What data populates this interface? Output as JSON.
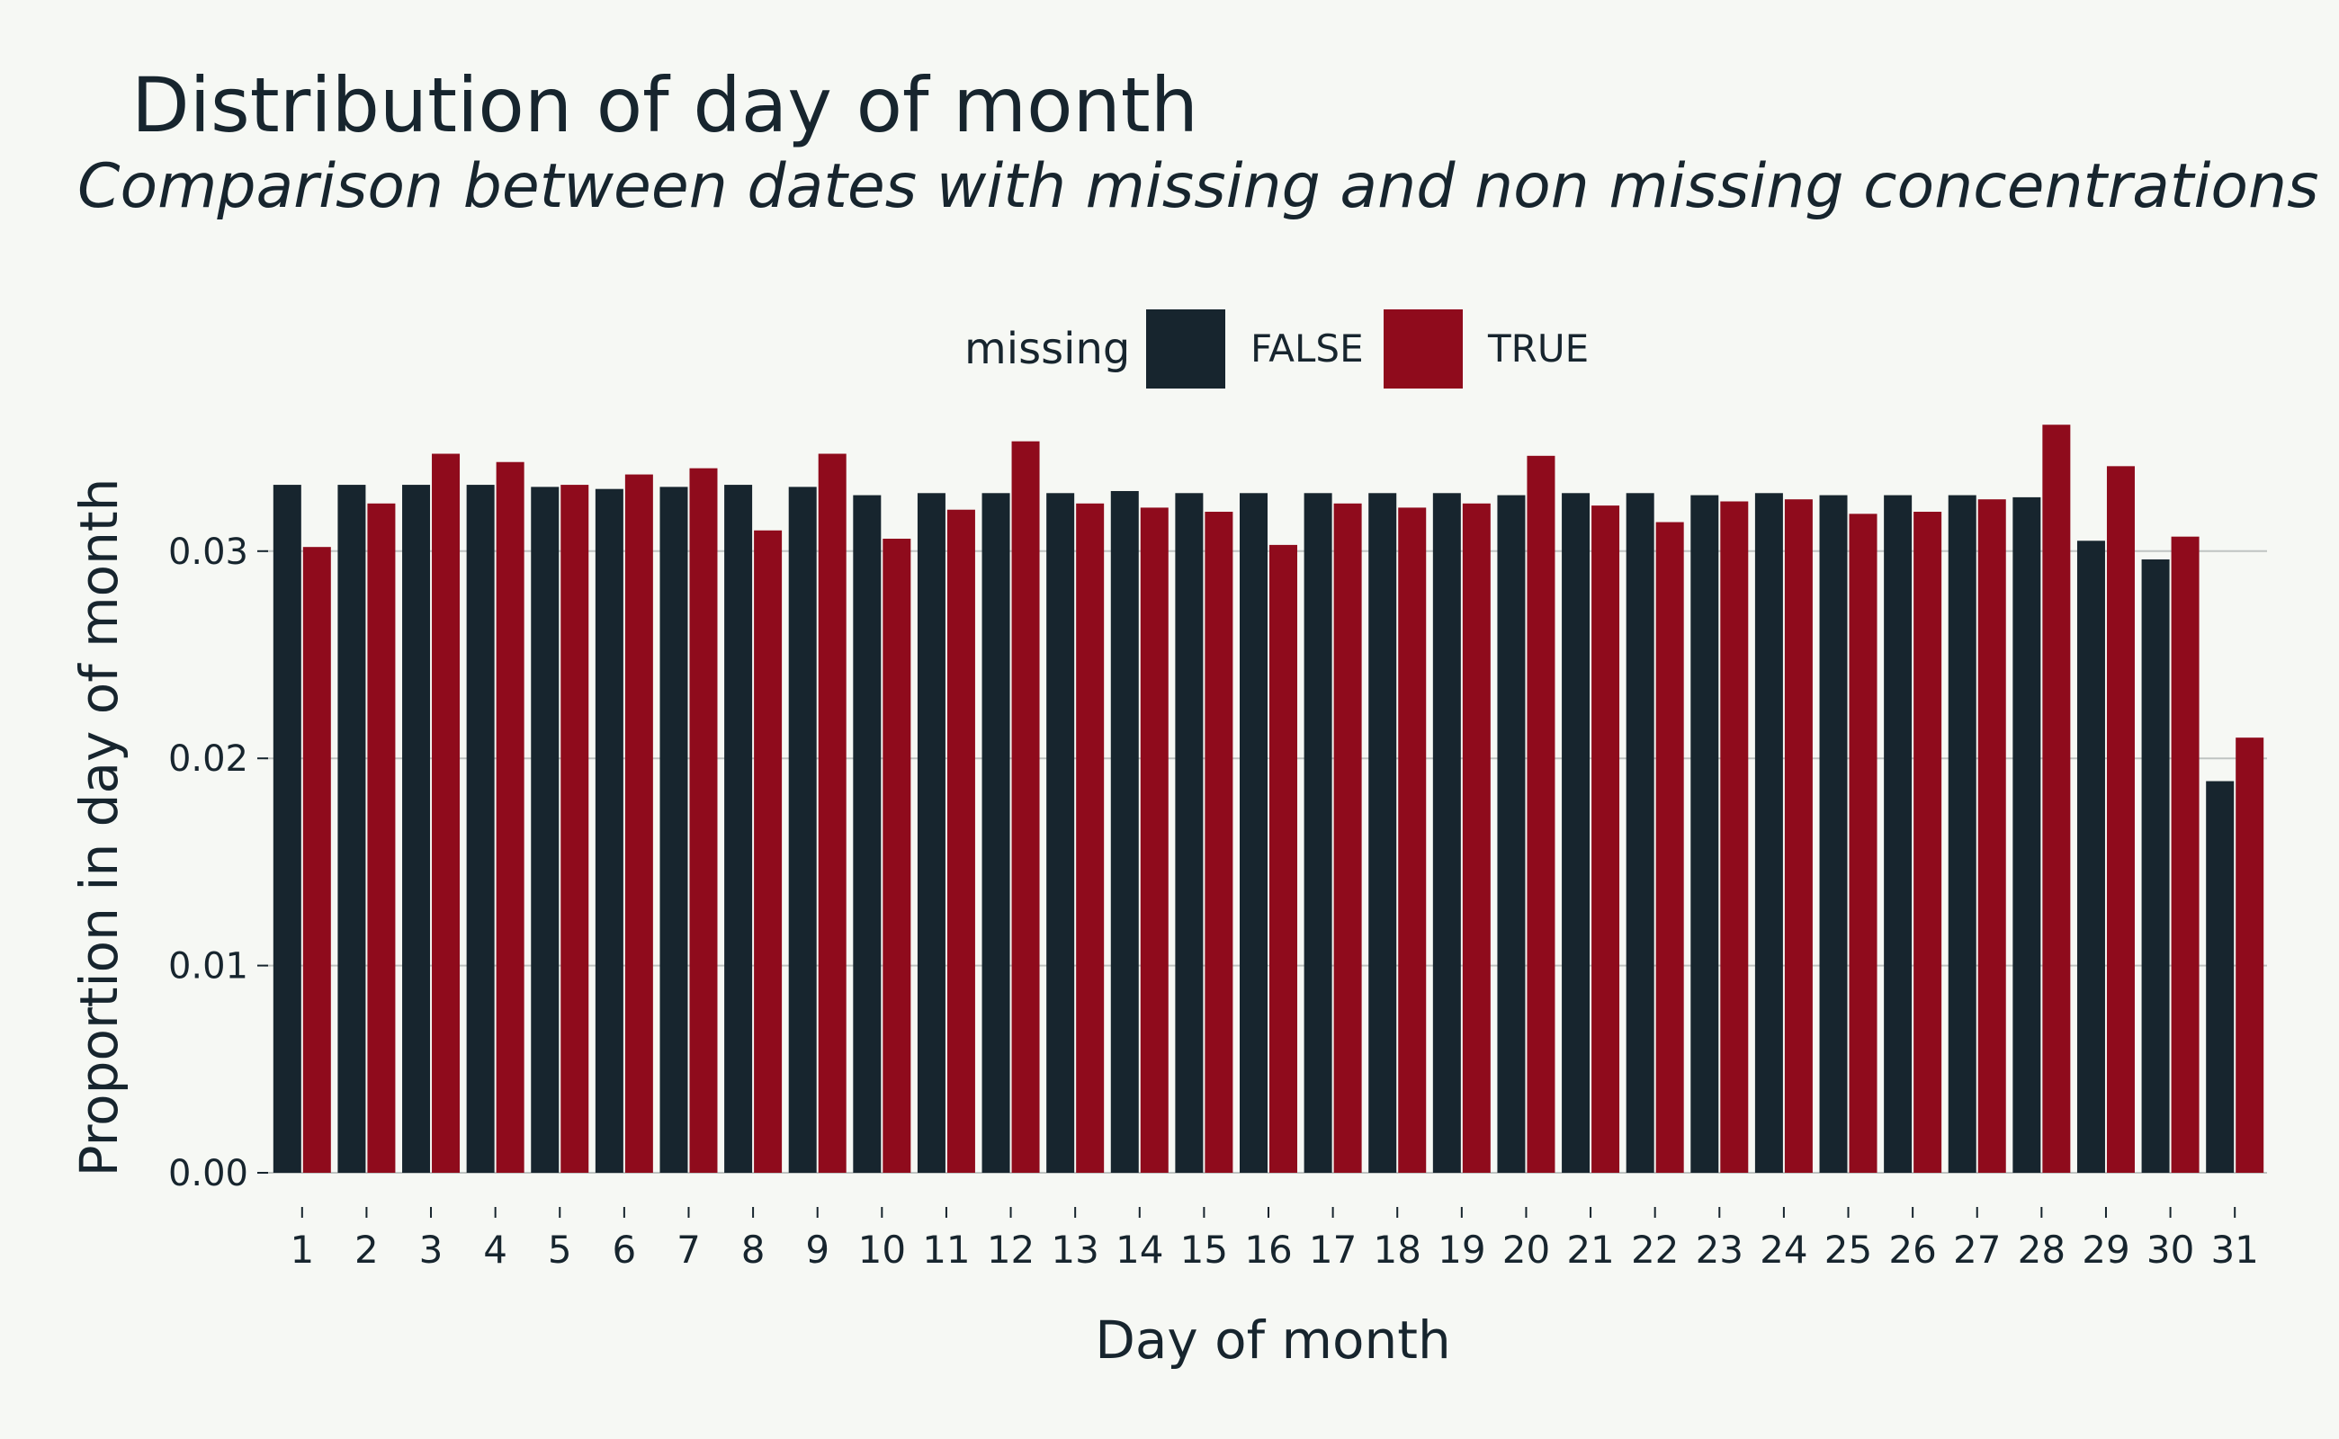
{
  "chart_data": {
    "type": "bar",
    "title": "Distribution of day of month",
    "subtitle": "Comparison between dates with missing and non missing concentrations",
    "xlabel": "Day of month",
    "ylabel": "Proportion in day of month",
    "categories": [
      "1",
      "2",
      "3",
      "4",
      "5",
      "6",
      "7",
      "8",
      "9",
      "10",
      "11",
      "12",
      "13",
      "14",
      "15",
      "16",
      "17",
      "18",
      "19",
      "20",
      "21",
      "22",
      "23",
      "24",
      "25",
      "26",
      "27",
      "28",
      "29",
      "30",
      "31"
    ],
    "ylim": [
      0,
      0.0375
    ],
    "yticks": [
      "0.00",
      "0.01",
      "0.02",
      "0.03"
    ],
    "ytick_values": [
      0,
      0.01,
      0.02,
      0.03
    ],
    "grid": "horizontal",
    "legend": {
      "title": "missing",
      "placement": "top-center"
    },
    "series": [
      {
        "name": "FALSE",
        "color": "#17252e",
        "values": [
          0.0332,
          0.0332,
          0.0332,
          0.0332,
          0.0331,
          0.033,
          0.0331,
          0.0332,
          0.0331,
          0.0327,
          0.0328,
          0.0328,
          0.0328,
          0.0329,
          0.0328,
          0.0328,
          0.0328,
          0.0328,
          0.0328,
          0.0327,
          0.0328,
          0.0328,
          0.0327,
          0.0328,
          0.0327,
          0.0327,
          0.0327,
          0.0326,
          0.0305,
          0.0296,
          0.0189
        ]
      },
      {
        "name": "TRUE",
        "color": "#8f0b1c",
        "values": [
          0.0302,
          0.0323,
          0.0347,
          0.0343,
          0.0332,
          0.0337,
          0.034,
          0.031,
          0.0347,
          0.0306,
          0.032,
          0.0353,
          0.0323,
          0.0321,
          0.0319,
          0.0303,
          0.0323,
          0.0321,
          0.0323,
          0.0346,
          0.0322,
          0.0314,
          0.0324,
          0.0325,
          0.0318,
          0.0319,
          0.0325,
          0.0361,
          0.0341,
          0.0307,
          0.021
        ]
      }
    ]
  },
  "colors": {
    "background": "#f6f8f4",
    "text": "#17252e",
    "grid": "#bfc4c2",
    "false_bar": "#17252e",
    "true_bar": "#8f0b1c"
  }
}
